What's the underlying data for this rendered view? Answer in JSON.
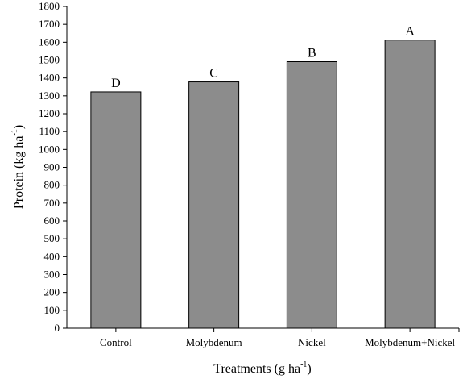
{
  "chart_data": {
    "type": "bar",
    "categories": [
      "Control",
      "Molybdenum",
      "Nickel",
      "Molybdenum+Nickel"
    ],
    "values": [
      1322,
      1378,
      1491,
      1612
    ],
    "significance_letters": [
      "D",
      "C",
      "B",
      "A"
    ],
    "title": "",
    "xlabel": {
      "text": "Treatments (g ha",
      "sup": "-1",
      "close": ")"
    },
    "ylabel": {
      "text": "Protein (kg ha",
      "sup": "-1",
      "close": ")"
    },
    "ylim": [
      0,
      1800
    ],
    "yticks": [
      0,
      100,
      200,
      300,
      400,
      500,
      600,
      700,
      800,
      900,
      1000,
      1100,
      1200,
      1300,
      1400,
      1500,
      1600,
      1700,
      1800
    ],
    "grid": false,
    "bar_color": "#8c8c8c",
    "bar_edge_color": "#000000"
  }
}
